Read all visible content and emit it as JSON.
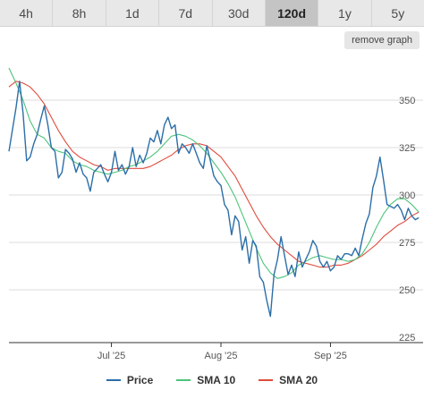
{
  "tabs": [
    {
      "label": "4h"
    },
    {
      "label": "8h"
    },
    {
      "label": "1d"
    },
    {
      "label": "7d"
    },
    {
      "label": "30d"
    },
    {
      "label": "120d",
      "active": true
    },
    {
      "label": "1y"
    },
    {
      "label": "5y"
    }
  ],
  "remove_graph_label": "remove graph",
  "colors": {
    "price": "#2b6ea8",
    "sma10": "#4cc47a",
    "sma20": "#e04b3c",
    "grid": "#dcdcdc",
    "axis": "#333333"
  },
  "chart_data": {
    "type": "line",
    "title": "",
    "xlabel": "",
    "ylabel": "",
    "xlim": [
      0,
      120
    ],
    "ylim": [
      225,
      368
    ],
    "y_ticks": [
      225,
      250,
      275,
      300,
      325,
      350
    ],
    "x_ticks": [
      {
        "x": 29,
        "label": "Jul '25"
      },
      {
        "x": 60,
        "label": "Aug '25"
      },
      {
        "x": 91,
        "label": "Sep '25"
      }
    ],
    "grid": "horizontal",
    "legend_position": "bottom",
    "series": [
      {
        "name": "Price",
        "color": "#2b6ea8",
        "values": [
          [
            0,
            323
          ],
          [
            2,
            346
          ],
          [
            3,
            360
          ],
          [
            4,
            343
          ],
          [
            5,
            318
          ],
          [
            6,
            320
          ],
          [
            7,
            327
          ],
          [
            8,
            332
          ],
          [
            9,
            340
          ],
          [
            10,
            347
          ],
          [
            11,
            337
          ],
          [
            12,
            325
          ],
          [
            13,
            323
          ],
          [
            14,
            309
          ],
          [
            15,
            312
          ],
          [
            16,
            324
          ],
          [
            17,
            322
          ],
          [
            18,
            319
          ],
          [
            19,
            312
          ],
          [
            20,
            317
          ],
          [
            21,
            311
          ],
          [
            22,
            309
          ],
          [
            23,
            302
          ],
          [
            24,
            312
          ],
          [
            25,
            314
          ],
          [
            26,
            316
          ],
          [
            27,
            311
          ],
          [
            28,
            307
          ],
          [
            29,
            312
          ],
          [
            30,
            323
          ],
          [
            31,
            313
          ],
          [
            32,
            316
          ],
          [
            33,
            311
          ],
          [
            34,
            315
          ],
          [
            35,
            325
          ],
          [
            36,
            315
          ],
          [
            37,
            321
          ],
          [
            38,
            317
          ],
          [
            39,
            322
          ],
          [
            40,
            330
          ],
          [
            41,
            328
          ],
          [
            42,
            334
          ],
          [
            43,
            327
          ],
          [
            44,
            337
          ],
          [
            45,
            341
          ],
          [
            46,
            335
          ],
          [
            47,
            337
          ],
          [
            48,
            322
          ],
          [
            49,
            327
          ],
          [
            50,
            325
          ],
          [
            51,
            322
          ],
          [
            52,
            327
          ],
          [
            53,
            322
          ],
          [
            54,
            317
          ],
          [
            55,
            314
          ],
          [
            56,
            326
          ],
          [
            57,
            318
          ],
          [
            58,
            310
          ],
          [
            59,
            307
          ],
          [
            60,
            305
          ],
          [
            61,
            295
          ],
          [
            62,
            292
          ],
          [
            63,
            279
          ],
          [
            64,
            289
          ],
          [
            65,
            286
          ],
          [
            66,
            271
          ],
          [
            67,
            278
          ],
          [
            68,
            264
          ],
          [
            69,
            276
          ],
          [
            70,
            273
          ],
          [
            71,
            257
          ],
          [
            72,
            254
          ],
          [
            73,
            244
          ],
          [
            74,
            236
          ],
          [
            75,
            258
          ],
          [
            76,
            266
          ],
          [
            77,
            278
          ],
          [
            78,
            268
          ],
          [
            79,
            258
          ],
          [
            80,
            263
          ],
          [
            81,
            257
          ],
          [
            82,
            270
          ],
          [
            83,
            262
          ],
          [
            84,
            266
          ],
          [
            85,
            270
          ],
          [
            86,
            276
          ],
          [
            87,
            273
          ],
          [
            88,
            265
          ],
          [
            89,
            262
          ],
          [
            90,
            265
          ],
          [
            91,
            260
          ],
          [
            92,
            262
          ],
          [
            93,
            268
          ],
          [
            94,
            266
          ],
          [
            95,
            269
          ],
          [
            96,
            269
          ],
          [
            97,
            268
          ],
          [
            98,
            272
          ],
          [
            99,
            268
          ],
          [
            100,
            277
          ],
          [
            101,
            285
          ],
          [
            102,
            290
          ],
          [
            103,
            304
          ],
          [
            104,
            310
          ],
          [
            105,
            320
          ],
          [
            106,
            308
          ],
          [
            107,
            295
          ],
          [
            108,
            294
          ],
          [
            109,
            293
          ],
          [
            110,
            295
          ],
          [
            111,
            292
          ],
          [
            112,
            287
          ],
          [
            113,
            293
          ],
          [
            114,
            289
          ],
          [
            115,
            287
          ],
          [
            116,
            288
          ]
        ]
      },
      {
        "name": "SMA 10",
        "color": "#4cc47a",
        "values": [
          [
            0,
            367
          ],
          [
            2,
            359
          ],
          [
            4,
            350
          ],
          [
            6,
            339
          ],
          [
            8,
            332
          ],
          [
            10,
            330
          ],
          [
            12,
            325
          ],
          [
            14,
            323
          ],
          [
            16,
            322
          ],
          [
            18,
            318
          ],
          [
            20,
            316
          ],
          [
            22,
            315
          ],
          [
            24,
            313
          ],
          [
            26,
            312
          ],
          [
            28,
            311
          ],
          [
            30,
            312
          ],
          [
            32,
            313
          ],
          [
            34,
            315
          ],
          [
            36,
            316
          ],
          [
            38,
            318
          ],
          [
            40,
            320
          ],
          [
            42,
            323
          ],
          [
            44,
            327
          ],
          [
            46,
            331
          ],
          [
            48,
            332
          ],
          [
            50,
            331
          ],
          [
            52,
            329
          ],
          [
            54,
            326
          ],
          [
            56,
            322
          ],
          [
            58,
            317
          ],
          [
            60,
            312
          ],
          [
            62,
            306
          ],
          [
            64,
            299
          ],
          [
            66,
            290
          ],
          [
            68,
            281
          ],
          [
            70,
            272
          ],
          [
            72,
            264
          ],
          [
            74,
            259
          ],
          [
            76,
            256
          ],
          [
            78,
            257
          ],
          [
            80,
            259
          ],
          [
            82,
            263
          ],
          [
            84,
            265
          ],
          [
            86,
            267
          ],
          [
            88,
            268
          ],
          [
            90,
            267
          ],
          [
            92,
            266
          ],
          [
            94,
            266
          ],
          [
            96,
            265
          ],
          [
            98,
            266
          ],
          [
            100,
            269
          ],
          [
            102,
            275
          ],
          [
            104,
            283
          ],
          [
            106,
            290
          ],
          [
            108,
            295
          ],
          [
            110,
            298
          ],
          [
            112,
            298
          ],
          [
            114,
            295
          ],
          [
            116,
            291
          ]
        ]
      },
      {
        "name": "SMA 20",
        "color": "#e04b3c",
        "values": [
          [
            0,
            357
          ],
          [
            2,
            360
          ],
          [
            4,
            359
          ],
          [
            6,
            357
          ],
          [
            8,
            353
          ],
          [
            10,
            348
          ],
          [
            12,
            341
          ],
          [
            14,
            334
          ],
          [
            16,
            328
          ],
          [
            18,
            323
          ],
          [
            20,
            320
          ],
          [
            22,
            318
          ],
          [
            24,
            316
          ],
          [
            26,
            315
          ],
          [
            28,
            313
          ],
          [
            30,
            314
          ],
          [
            32,
            314
          ],
          [
            34,
            314
          ],
          [
            36,
            314
          ],
          [
            38,
            314
          ],
          [
            40,
            315
          ],
          [
            42,
            317
          ],
          [
            44,
            319
          ],
          [
            46,
            321
          ],
          [
            48,
            324
          ],
          [
            50,
            326
          ],
          [
            52,
            327
          ],
          [
            54,
            327
          ],
          [
            56,
            326
          ],
          [
            58,
            323
          ],
          [
            60,
            320
          ],
          [
            62,
            315
          ],
          [
            64,
            310
          ],
          [
            66,
            303
          ],
          [
            68,
            296
          ],
          [
            70,
            289
          ],
          [
            72,
            283
          ],
          [
            74,
            278
          ],
          [
            76,
            274
          ],
          [
            78,
            271
          ],
          [
            80,
            268
          ],
          [
            82,
            265
          ],
          [
            84,
            264
          ],
          [
            86,
            263
          ],
          [
            88,
            262
          ],
          [
            90,
            262
          ],
          [
            92,
            263
          ],
          [
            94,
            263
          ],
          [
            96,
            264
          ],
          [
            98,
            266
          ],
          [
            100,
            268
          ],
          [
            102,
            271
          ],
          [
            104,
            274
          ],
          [
            106,
            278
          ],
          [
            108,
            281
          ],
          [
            110,
            284
          ],
          [
            112,
            286
          ],
          [
            114,
            289
          ],
          [
            116,
            291
          ]
        ]
      }
    ]
  }
}
